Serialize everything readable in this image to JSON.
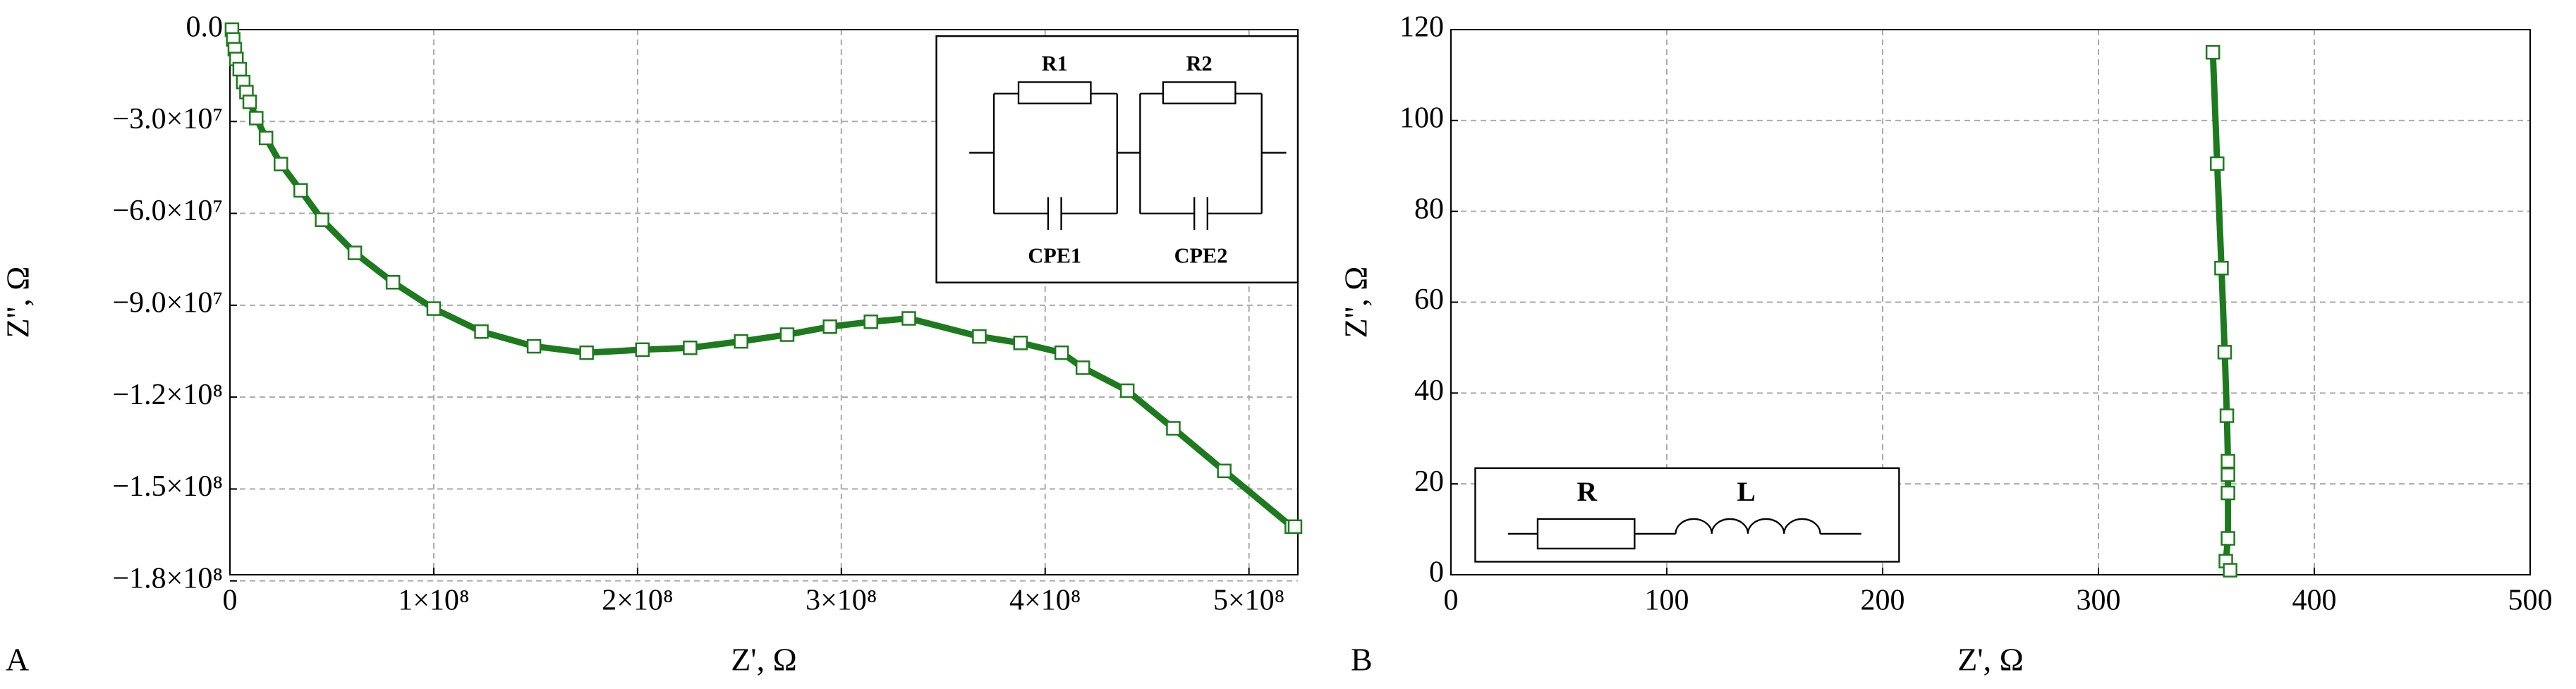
{
  "chart_data": [
    {
      "type": "line",
      "panel_label": "A",
      "x_label": "Z', Ω",
      "y_label": "Z'', Ω",
      "color": "#1e7a1e",
      "grid": true,
      "xlim": [
        0,
        524000000
      ],
      "ylim": [
        -178000000,
        0
      ],
      "xticks": [
        0,
        {
          "value": 100000000,
          "label": "1×10⁸"
        },
        {
          "value": 200000000,
          "label": "2×10⁸"
        },
        {
          "value": 300000000,
          "label": "3×10⁸"
        },
        {
          "value": 400000000,
          "label": "4×10⁸"
        },
        {
          "value": 500000000,
          "label": "5×10⁸"
        }
      ],
      "yticks": [
        {
          "value": 0,
          "label": "0.0"
        },
        {
          "value": -30000000,
          "label": "−3.0×10⁷"
        },
        {
          "value": -60000000,
          "label": "−6.0×10⁷"
        },
        {
          "value": -90000000,
          "label": "−9.0×10⁷"
        },
        {
          "value": -120000000,
          "label": "−1.2×10⁸"
        },
        {
          "value": -150000000,
          "label": "−1.5×10⁸"
        },
        {
          "value": -180000000,
          "label": "−1.8×10⁸"
        }
      ],
      "x": [
        1000000,
        1600000,
        2400000,
        3200000,
        4800000,
        6500000,
        8100000,
        9700000,
        12900000,
        17700000,
        25000000,
        34700000,
        45200000,
        61300000,
        80000000,
        100000000,
        123400000,
        149200000,
        175000000,
        202400000,
        225800000,
        250800000,
        273400000,
        294400000,
        314500000,
        333100000,
        367700000,
        387900000,
        408100000,
        418500000,
        440300000,
        462900000,
        487900000,
        521000000,
        522600000
      ],
      "values": [
        0,
        -3200000,
        -6400000,
        -9600000,
        -12900000,
        -17100000,
        -20400000,
        -23600000,
        -28900000,
        -35400000,
        -43900000,
        -52500000,
        -62100000,
        -72900000,
        -82500000,
        -91100000,
        -98600000,
        -103400000,
        -105500000,
        -104500000,
        -103900000,
        -101800000,
        -99600000,
        -97000000,
        -95400000,
        -94300000,
        -100200000,
        -102300000,
        -105500000,
        -110400000,
        -117900000,
        -130200000,
        -144100000,
        -162300000,
        -162300000
      ],
      "circuit_labels": [
        "R1",
        "R2",
        "CPE1",
        "CPE2"
      ]
    },
    {
      "type": "line",
      "panel_label": "B",
      "x_label": "Z', Ω",
      "y_label": "Z'', Ω",
      "color": "#1e7a1e",
      "grid": true,
      "xlim": [
        0,
        500
      ],
      "ylim": [
        0,
        120
      ],
      "xticks": [
        0,
        100,
        200,
        300,
        400,
        500
      ],
      "yticks": [
        0,
        20,
        40,
        60,
        80,
        100,
        120
      ],
      "x": [
        353,
        355,
        357,
        358.5,
        359.5,
        360,
        360,
        360,
        360,
        359,
        361
      ],
      "values": [
        115,
        90.5,
        67.5,
        49,
        35,
        25,
        22,
        18,
        8,
        3,
        1
      ],
      "circuit_labels": [
        "R",
        "L"
      ]
    }
  ]
}
